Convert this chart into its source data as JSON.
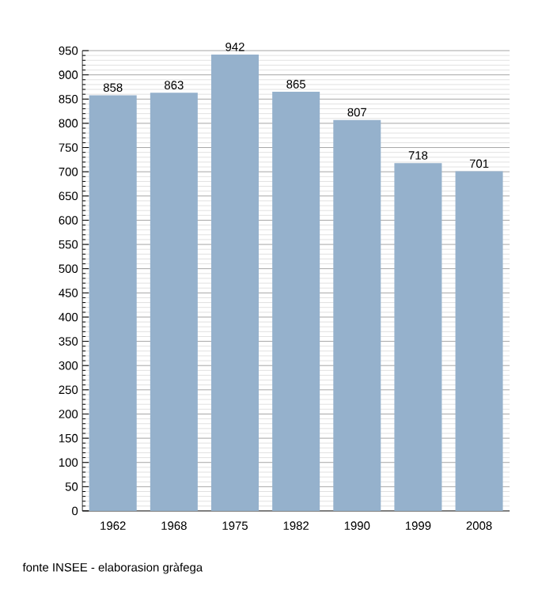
{
  "chart_data": {
    "type": "bar",
    "categories": [
      "1962",
      "1968",
      "1975",
      "1982",
      "1990",
      "1999",
      "2008"
    ],
    "values": [
      858,
      863,
      942,
      865,
      807,
      718,
      701
    ],
    "color": "#95b1cc",
    "ylim": [
      0,
      950
    ],
    "yticks": [
      0,
      50,
      100,
      150,
      200,
      250,
      300,
      350,
      400,
      450,
      500,
      550,
      600,
      650,
      700,
      750,
      800,
      850,
      900,
      950
    ],
    "grid": "y",
    "data_labels": true,
    "annotations": [
      "fonte INSEE - elaborasion gràfega"
    ]
  }
}
